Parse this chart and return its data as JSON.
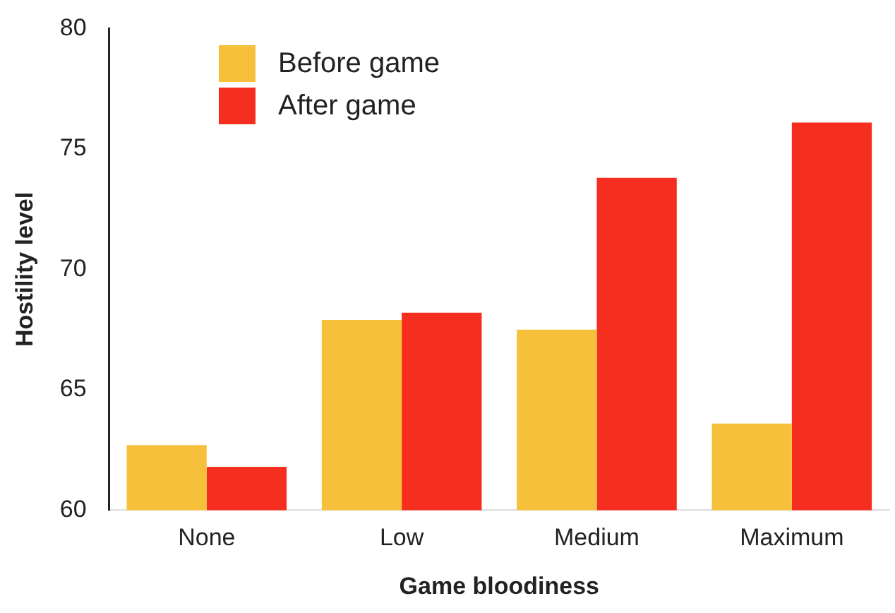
{
  "chart_data": {
    "type": "bar",
    "xlabel": "Game bloodiness",
    "ylabel": "Hostility level",
    "categories": [
      "None",
      "Low",
      "Medium",
      "Maximum"
    ],
    "series": [
      {
        "name": "Before game",
        "color": "#f6c03a",
        "values": [
          62.7,
          67.9,
          67.5,
          63.6
        ]
      },
      {
        "name": "After game",
        "color": "#f52e1f",
        "values": [
          61.8,
          68.2,
          73.8,
          76.1
        ]
      }
    ],
    "ylim": [
      60,
      80
    ],
    "yticks": [
      60,
      65,
      70,
      75,
      80
    ],
    "grid": false,
    "legend": "top left"
  }
}
